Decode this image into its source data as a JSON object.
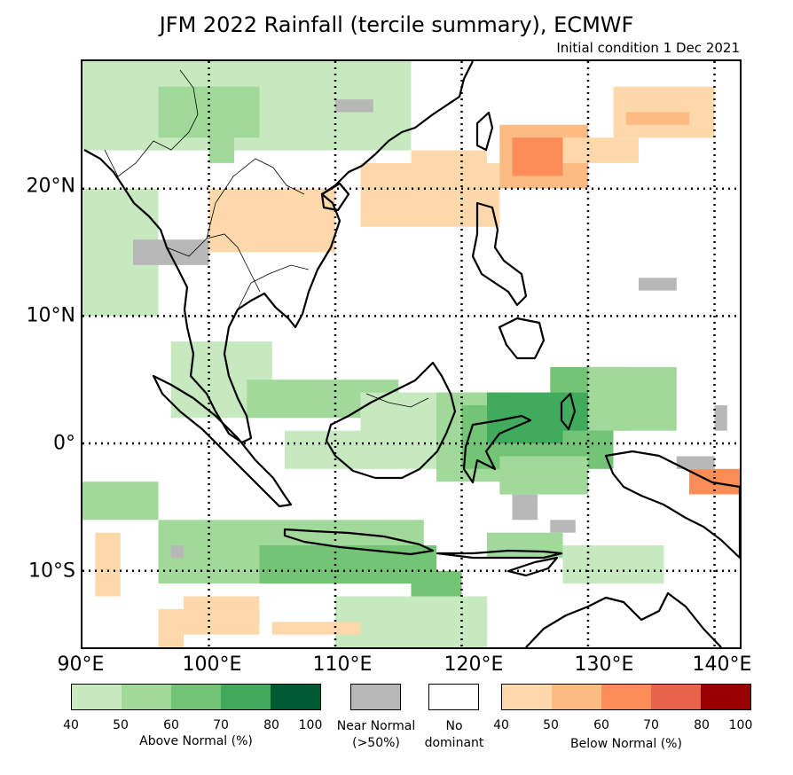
{
  "title": "JFM 2022 Rainfall (tercile summary), ECMWF",
  "subtitle": "Initial condition 1 Dec 2021",
  "map": {
    "lon_range": [
      90,
      142
    ],
    "lat_range": [
      -16,
      30
    ],
    "lon_ticks": [
      "90°E",
      "100°E",
      "110°E",
      "120°E",
      "130°E",
      "140°E"
    ],
    "lat_ticks": [
      "20°N",
      "10°N",
      "0°",
      "10°S"
    ],
    "gridlines": "dotted"
  },
  "legend": {
    "above_normal": {
      "title": "Above Normal (%)",
      "ticks": [
        "40",
        "50",
        "60",
        "70",
        "80",
        "100"
      ],
      "colors": [
        "#c7e9c0",
        "#a1d99b",
        "#74c476",
        "#41ab5d",
        "#005a32"
      ]
    },
    "near_normal": {
      "title_line1": "Near Normal",
      "title_line2": "(>50%)",
      "color": "#b8b8b8"
    },
    "no_dominant": {
      "title_line1": "No",
      "title_line2": "dominant",
      "color": "#ffffff"
    },
    "below_normal": {
      "title": "Below Normal (%)",
      "ticks": [
        "40",
        "50",
        "60",
        "70",
        "80",
        "100"
      ],
      "colors": [
        "#fdd8aa",
        "#fdbb84",
        "#fc8d59",
        "#e9624a",
        "#990000"
      ]
    }
  }
}
